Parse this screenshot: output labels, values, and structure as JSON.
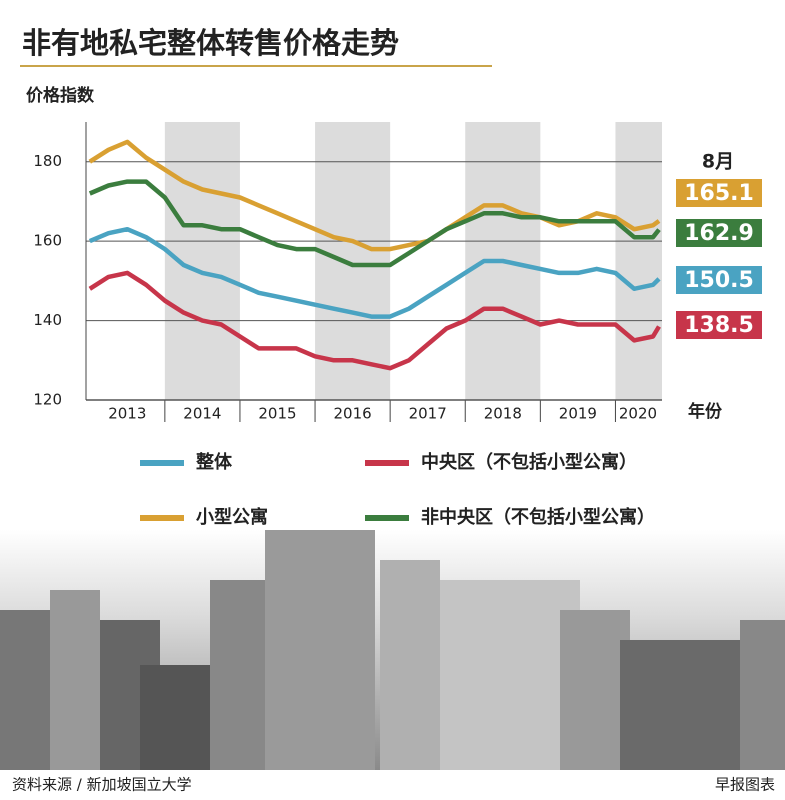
{
  "chart_data": {
    "type": "line",
    "title": "非有地私宅整体转售价格走势",
    "y_label": "价格指数",
    "x_label": "年份",
    "end_label_header": "8月",
    "source": "资料来源 / 新加坡国立大学",
    "credit": "早报图表",
    "x": [
      2013,
      2013.25,
      2013.5,
      2013.75,
      2014,
      2014.25,
      2014.5,
      2014.75,
      2015,
      2015.25,
      2015.5,
      2015.75,
      2016,
      2016.25,
      2016.5,
      2016.75,
      2017,
      2017.25,
      2017.5,
      2017.75,
      2018,
      2018.25,
      2018.5,
      2018.75,
      2019,
      2019.25,
      2019.5,
      2019.75,
      2020,
      2020.25,
      2020.5,
      2020.58
    ],
    "xlim": [
      2012.95,
      2020.62
    ],
    "xticks": [
      {
        "value": 2013.5,
        "label": "2013"
      },
      {
        "value": 2014.5,
        "label": "2014"
      },
      {
        "value": 2015.5,
        "label": "2015"
      },
      {
        "value": 2016.5,
        "label": "2016"
      },
      {
        "value": 2017.5,
        "label": "2017"
      },
      {
        "value": 2018.5,
        "label": "2018"
      },
      {
        "value": 2019.5,
        "label": "2019"
      },
      {
        "value": 2020.3,
        "label": "2020"
      }
    ],
    "shade_years": [
      2014,
      2016,
      2018,
      2020
    ],
    "ylim": [
      120,
      190
    ],
    "yticks": [
      120,
      140,
      160,
      180
    ],
    "grid": true,
    "series": [
      {
        "name": "整体",
        "color": "#4aa3c2",
        "values": [
          160,
          162,
          163,
          161,
          158,
          154,
          152,
          151,
          149,
          147,
          146,
          145,
          144,
          143,
          142,
          141,
          141,
          143,
          146,
          149,
          152,
          155,
          155,
          154,
          153,
          152,
          152,
          153,
          152,
          148,
          149,
          150.5
        ]
      },
      {
        "name": "中央区（不包括小型公寓）",
        "color": "#c7354a",
        "values": [
          148,
          151,
          152,
          149,
          145,
          142,
          140,
          139,
          136,
          133,
          133,
          133,
          131,
          130,
          130,
          129,
          128,
          130,
          134,
          138,
          140,
          143,
          143,
          141,
          139,
          140,
          139,
          139,
          139,
          135,
          136,
          138.5
        ]
      },
      {
        "name": "小型公寓",
        "color": "#d9a032",
        "values": [
          180,
          183,
          185,
          181,
          178,
          175,
          173,
          172,
          171,
          169,
          167,
          165,
          163,
          161,
          160,
          158,
          158,
          159,
          160,
          163,
          166,
          169,
          169,
          167,
          166,
          164,
          165,
          167,
          166,
          163,
          164,
          165.1
        ]
      },
      {
        "name": "非中央区（不包括小型公寓）",
        "color": "#3b7d3e",
        "values": [
          172,
          174,
          175,
          175,
          171,
          164,
          164,
          163,
          163,
          161,
          159,
          158,
          158,
          156,
          154,
          154,
          154,
          157,
          160,
          163,
          165,
          167,
          167,
          166,
          166,
          165,
          165,
          165,
          165,
          161,
          161,
          162.9
        ]
      }
    ]
  }
}
